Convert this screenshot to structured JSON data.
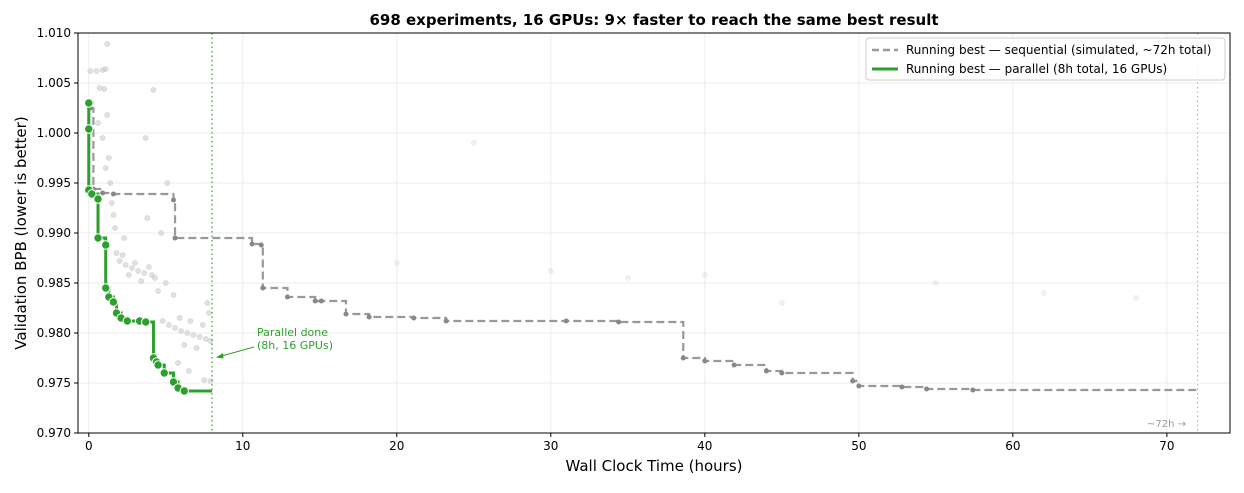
{
  "chart_data": {
    "type": "line",
    "title": "698 experiments, 16 GPUs: 9× faster to reach the same best result",
    "xlabel": "Wall Clock Time (hours)",
    "ylabel": "Validation BPB (lower is better)",
    "xlim": [
      -0.7,
      74.1
    ],
    "ylim": [
      0.97,
      1.01
    ],
    "xticks": [
      0,
      10,
      20,
      30,
      40,
      50,
      60,
      70
    ],
    "yticks": [
      "0.970",
      "0.975",
      "0.980",
      "0.985",
      "0.990",
      "0.995",
      "1.000",
      "1.005",
      "1.010"
    ],
    "grid": true,
    "legend_position": "top-right",
    "colors": {
      "sequential": "#999999",
      "parallel": "#2ca02c",
      "scatter": "#c8c8c8"
    },
    "series": [
      {
        "name": "Running best — sequential (simulated, ~72h total)",
        "style": "dashed-step",
        "end_x": 72,
        "points": [
          [
            0.1,
            1.0025
          ],
          [
            0.3,
            0.9944
          ],
          [
            0.9,
            0.994
          ],
          [
            1.6,
            0.9939
          ],
          [
            5.5,
            0.9933
          ],
          [
            5.6,
            0.9895
          ],
          [
            10.6,
            0.9889
          ],
          [
            11.2,
            0.9888
          ],
          [
            11.3,
            0.9845
          ],
          [
            12.9,
            0.9836
          ],
          [
            14.7,
            0.9832
          ],
          [
            15.1,
            0.9832
          ],
          [
            16.7,
            0.9819
          ],
          [
            18.2,
            0.9816
          ],
          [
            21.1,
            0.9815
          ],
          [
            23.2,
            0.9812
          ],
          [
            31.0,
            0.9812
          ],
          [
            34.4,
            0.9811
          ],
          [
            38.6,
            0.9775
          ],
          [
            40.0,
            0.9772
          ],
          [
            41.9,
            0.9768
          ],
          [
            44.0,
            0.9762
          ],
          [
            45.0,
            0.976
          ],
          [
            49.6,
            0.9752
          ],
          [
            50.0,
            0.9747
          ],
          [
            52.8,
            0.9746
          ],
          [
            54.4,
            0.9744
          ],
          [
            57.4,
            0.9743
          ]
        ]
      },
      {
        "name": "Running best — parallel (8h total, 16 GPUs)",
        "style": "solid-step",
        "end_x": 8,
        "points": [
          [
            0.0,
            1.003
          ],
          [
            0.0,
            1.0004
          ],
          [
            0.0,
            0.9943
          ],
          [
            0.2,
            0.9939
          ],
          [
            0.6,
            0.9934
          ],
          [
            0.6,
            0.9895
          ],
          [
            1.1,
            0.9888
          ],
          [
            1.1,
            0.9845
          ],
          [
            1.3,
            0.9836
          ],
          [
            1.6,
            0.9831
          ],
          [
            1.8,
            0.982
          ],
          [
            2.1,
            0.9815
          ],
          [
            2.5,
            0.9812
          ],
          [
            3.3,
            0.9812
          ],
          [
            3.7,
            0.9811
          ],
          [
            4.2,
            0.9775
          ],
          [
            4.4,
            0.9771
          ],
          [
            4.5,
            0.9768
          ],
          [
            4.9,
            0.976
          ],
          [
            5.5,
            0.9751
          ],
          [
            5.8,
            0.9745
          ],
          [
            6.2,
            0.9742
          ]
        ]
      }
    ],
    "scatter": [
      [
        1.2,
        1.0089
      ],
      [
        0.1,
        1.0062
      ],
      [
        0.5,
        1.0062
      ],
      [
        0.9,
        1.0063
      ],
      [
        1.1,
        1.0064
      ],
      [
        0.7,
        1.0045
      ],
      [
        1.0,
        1.0044
      ],
      [
        4.2,
        1.0043
      ],
      [
        0.2,
        1.003
      ],
      [
        1.2,
        1.0018
      ],
      [
        0.6,
        1.001
      ],
      [
        0.9,
        0.9995
      ],
      [
        1.3,
        0.9975
      ],
      [
        3.7,
        0.9995
      ],
      [
        1.1,
        0.9965
      ],
      [
        1.4,
        0.995
      ],
      [
        1.5,
        0.993
      ],
      [
        1.6,
        0.9918
      ],
      [
        5.1,
        0.995
      ],
      [
        1.8,
        0.988
      ],
      [
        2.0,
        0.9872
      ],
      [
        2.4,
        0.9868
      ],
      [
        2.8,
        0.9865
      ],
      [
        3.2,
        0.9862
      ],
      [
        3.6,
        0.986
      ],
      [
        4.1,
        0.9858
      ],
      [
        2.2,
        0.9878
      ],
      [
        3.0,
        0.987
      ],
      [
        3.9,
        0.9866
      ],
      [
        4.3,
        0.9855
      ],
      [
        2.6,
        0.9858
      ],
      [
        3.4,
        0.9852
      ],
      [
        4.5,
        0.9842
      ],
      [
        5.0,
        0.985
      ],
      [
        5.5,
        0.9838
      ],
      [
        4.8,
        0.9812
      ],
      [
        5.2,
        0.9808
      ],
      [
        5.6,
        0.9805
      ],
      [
        6.0,
        0.9802
      ],
      [
        6.4,
        0.98
      ],
      [
        6.8,
        0.9798
      ],
      [
        7.2,
        0.9796
      ],
      [
        7.6,
        0.9794
      ],
      [
        7.9,
        0.9792
      ],
      [
        5.9,
        0.9815
      ],
      [
        6.6,
        0.9812
      ],
      [
        7.4,
        0.9808
      ],
      [
        7.8,
        0.982
      ],
      [
        6.2,
        0.9788
      ],
      [
        7.0,
        0.9785
      ],
      [
        7.7,
        0.983
      ],
      [
        5.8,
        0.977
      ],
      [
        6.5,
        0.9762
      ],
      [
        7.5,
        0.9753
      ],
      [
        7.9,
        0.9752
      ],
      [
        1.7,
        0.9905
      ],
      [
        2.3,
        0.9895
      ],
      [
        4.7,
        0.99
      ],
      [
        3.8,
        0.9915
      ],
      [
        20,
        0.987
      ],
      [
        30,
        0.9862
      ],
      [
        40,
        0.9858
      ],
      [
        55,
        0.985
      ],
      [
        62,
        0.984
      ],
      [
        68,
        0.9835
      ],
      [
        25,
        0.999
      ],
      [
        45,
        0.983
      ],
      [
        35,
        0.9855
      ]
    ],
    "annotations": [
      {
        "text_line1": "Parallel done",
        "text_line2": "(8h, 16 GPUs)",
        "x": 8,
        "y": 0.9775
      },
      {
        "text": "~72h →",
        "x": 72
      }
    ]
  }
}
